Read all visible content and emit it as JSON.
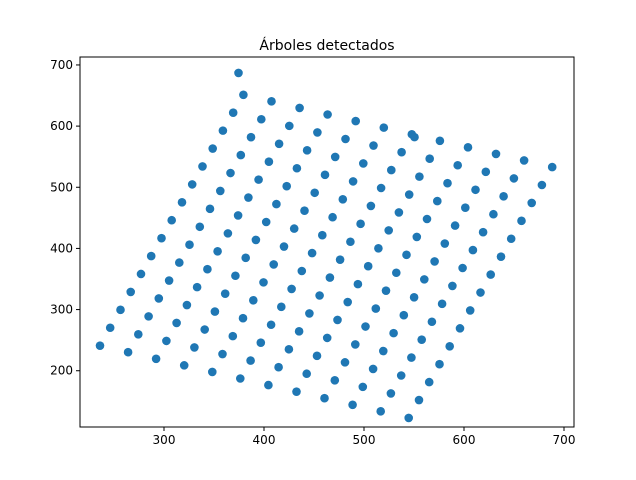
{
  "chart_data": {
    "type": "scatter",
    "title": "Árboles detectados",
    "xlabel": "",
    "ylabel": "",
    "xlim": [
      216,
      710
    ],
    "ylim": [
      108,
      713
    ],
    "xticks": [
      300,
      400,
      500,
      600,
      700
    ],
    "yticks": [
      200,
      300,
      400,
      500,
      600,
      700
    ],
    "grid": false,
    "marker_color": "#1f77b4",
    "x": [
      236.0,
      264.1,
      292.1,
      320.2,
      348.3,
      376.3,
      404.4,
      432.5,
      460.5,
      488.6,
      516.7,
      544.7,
      246.2,
      274.3,
      302.4,
      330.4,
      358.5,
      386.6,
      414.6,
      442.7,
      470.8,
      498.8,
      526.9,
      555.0,
      256.5,
      284.6,
      312.6,
      340.7,
      368.8,
      396.8,
      424.9,
      453.0,
      481.0,
      509.1,
      537.2,
      565.2,
      266.7,
      294.8,
      322.9,
      350.9,
      379.0,
      407.1,
      435.1,
      463.2,
      491.3,
      519.3,
      547.4,
      575.5,
      277.0,
      305.1,
      333.1,
      361.2,
      389.3,
      417.3,
      445.4,
      473.5,
      501.5,
      529.6,
      557.7,
      585.7,
      287.2,
      315.3,
      343.4,
      371.4,
      399.5,
      427.6,
      455.6,
      483.7,
      511.8,
      539.8,
      567.9,
      596.0,
      297.5,
      325.5,
      353.6,
      381.7,
      409.7,
      437.8,
      465.9,
      493.9,
      522.0,
      550.1,
      578.1,
      606.2,
      307.7,
      335.8,
      363.9,
      391.9,
      420.0,
      448.1,
      476.1,
      504.2,
      532.3,
      560.3,
      588.4,
      616.5,
      318.0,
      346.0,
      374.1,
      402.2,
      430.2,
      458.3,
      486.4,
      514.4,
      542.5,
      570.6,
      598.6,
      626.7,
      328.2,
      356.3,
      384.4,
      412.4,
      440.5,
      468.6,
      496.6,
      524.7,
      552.8,
      580.8,
      608.9,
      637.0,
      338.5,
      366.5,
      394.6,
      422.7,
      450.7,
      478.8,
      506.9,
      534.9,
      563.0,
      591.1,
      619.1,
      647.2,
      348.7,
      376.8,
      404.9,
      432.9,
      461.0,
      489.1,
      517.1,
      545.2,
      573.3,
      601.3,
      629.4,
      657.5,
      358.9,
      387.0,
      415.1,
      443.1,
      471.2,
      499.3,
      527.3,
      555.4,
      583.5,
      611.5,
      639.6,
      667.7,
      369.2,
      397.3,
      425.3,
      453.4,
      481.5,
      509.5,
      537.6,
      565.7,
      593.7,
      621.8,
      649.9,
      677.9,
      379.4,
      407.5,
      435.6,
      463.6,
      491.7,
      519.8,
      547.8,
      575.9,
      604.0,
      632.0,
      660.1,
      688.2
    ],
    "y": [
      241.0,
      230.3,
      219.5,
      208.8,
      198.0,
      187.3,
      176.5,
      165.8,
      155.1,
      144.3,
      133.6,
      122.8,
      270.3,
      259.6,
      248.8,
      238.1,
      227.3,
      216.6,
      205.8,
      195.1,
      184.4,
      173.6,
      162.9,
      152.1,
      299.6,
      288.9,
      278.1,
      267.4,
      256.6,
      245.9,
      235.1,
      224.4,
      213.7,
      202.9,
      192.2,
      181.4,
      328.9,
      318.2,
      307.4,
      296.7,
      285.9,
      275.2,
      264.4,
      253.7,
      243.0,
      232.2,
      221.5,
      210.7,
      358.2,
      347.5,
      336.7,
      326.0,
      315.2,
      304.5,
      293.7,
      283.0,
      272.3,
      261.5,
      250.8,
      240.0,
      387.5,
      376.8,
      366.0,
      355.3,
      344.5,
      333.8,
      323.0,
      312.3,
      301.6,
      290.8,
      280.1,
      269.3,
      416.8,
      406.1,
      395.3,
      384.6,
      373.8,
      363.1,
      352.3,
      341.6,
      330.9,
      320.1,
      309.4,
      298.6,
      446.1,
      435.4,
      424.6,
      413.9,
      403.1,
      392.4,
      381.6,
      370.9,
      360.2,
      349.4,
      338.7,
      327.9,
      475.4,
      464.7,
      453.9,
      443.2,
      432.4,
      421.7,
      410.9,
      400.2,
      389.5,
      378.7,
      368.0,
      357.2,
      504.7,
      494.0,
      483.2,
      472.5,
      461.7,
      451.0,
      440.2,
      429.5,
      418.8,
      408.0,
      397.3,
      386.5,
      534.0,
      523.3,
      512.5,
      501.8,
      491.0,
      480.3,
      469.5,
      458.8,
      448.1,
      437.3,
      426.6,
      415.8,
      563.3,
      552.6,
      541.8,
      531.1,
      520.3,
      509.6,
      498.8,
      488.1,
      477.4,
      466.6,
      455.9,
      445.1,
      592.6,
      581.9,
      571.1,
      560.4,
      549.6,
      538.9,
      528.1,
      517.4,
      506.7,
      495.9,
      485.2,
      474.4,
      621.9,
      611.2,
      600.4,
      589.7,
      578.9,
      568.2,
      557.4,
      546.7,
      536.0,
      525.2,
      514.5,
      503.7,
      651.2,
      640.5,
      629.7,
      619.0,
      608.2,
      597.5,
      586.7,
      576.0,
      565.3,
      554.5,
      543.8,
      533.0
    ],
    "extra_points": [
      {
        "x": 374.5,
        "y": 687.0
      },
      {
        "x": 550.5,
        "y": 582.0
      }
    ]
  }
}
